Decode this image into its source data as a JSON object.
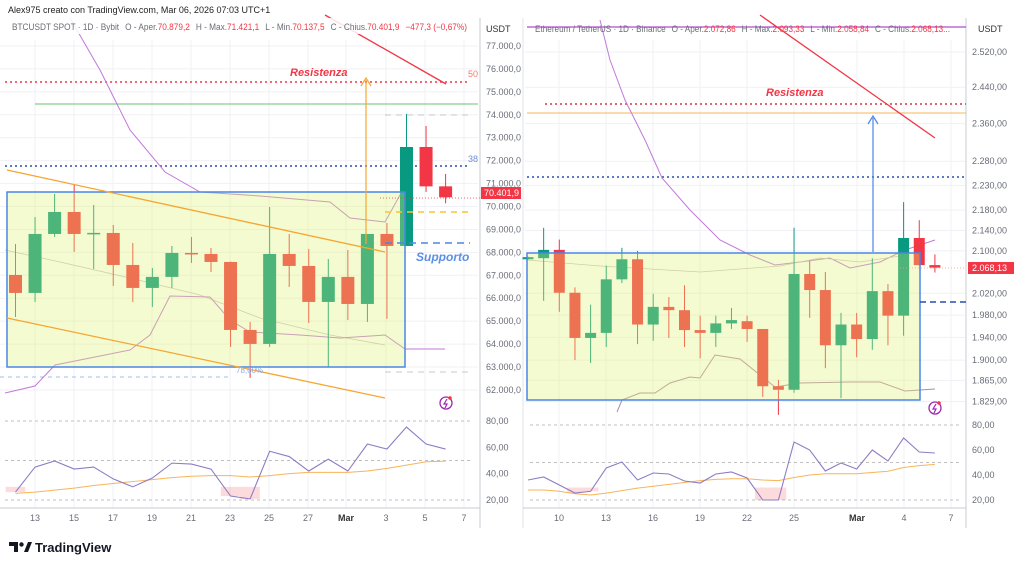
{
  "watermark": "Alex975 creato con TradingView.com, Mar 06, 2026 07:03 UTC+1",
  "brand": "TradingView",
  "colors": {
    "up": "#089981",
    "down": "#f23645",
    "rsi": "#8e7cc3",
    "rsi_ma": "#f7b45a",
    "box_fill": "#f3f9d2",
    "box_border": "#4a86e8"
  },
  "chart_data": [
    {
      "type": "candlestick",
      "symbol": "BTCUSDT SPOT",
      "header": {
        "symbol": "BTCUSDT SPOT · 1D · Bybit",
        "o_label": "O - Aper.",
        "o": "70.879,2",
        "h_label": "H - Max.",
        "h": "71.421,1",
        "l_label": "L - Min.",
        "l": "70.137,5",
        "c_label": "C - Chius.",
        "c": "70.401,9",
        "change": "−477,3 (−0,67%)"
      },
      "currency": "USDT",
      "last_price_label": "70.401,9",
      "ylim": [
        61500,
        77500
      ],
      "y_ticks": [
        "77.000,0",
        "76.000,0",
        "75.000,0",
        "74.000,0",
        "73.000,0",
        "72.000,0",
        "71.000,0",
        "70.000,0",
        "69.000,0",
        "68.000,0",
        "67.000,0",
        "66.000,0",
        "65.000,0",
        "64.000,0",
        "63.000,0",
        "62.000,0"
      ],
      "x_ticks": [
        "13",
        "15",
        "17",
        "19",
        "21",
        "23",
        "25",
        "27",
        "Mar",
        "3",
        "5",
        "7"
      ],
      "annotations": {
        "resistance": "Resistenza",
        "support": "Supporto",
        "fib_50": "50",
        "fib_38": "38",
        "fib_786": "78,60%"
      },
      "candles_columns": [
        "date",
        "open",
        "high",
        "low",
        "close"
      ],
      "candles": [
        [
          "Feb 12",
          67016,
          68367,
          65184,
          66231
        ],
        [
          "Feb 13",
          66231,
          69544,
          65838,
          68803
        ],
        [
          "Feb 14",
          68803,
          70547,
          68672,
          69762
        ],
        [
          "Feb 15",
          69762,
          70940,
          68018,
          68803
        ],
        [
          "Feb 16",
          68803,
          70067,
          67277,
          68850
        ],
        [
          "Feb 17",
          68847,
          69196,
          66536,
          67451
        ],
        [
          "Feb 18",
          67451,
          68410,
          65838,
          66449
        ],
        [
          "Feb 19",
          66449,
          67320,
          65620,
          66930
        ],
        [
          "Feb 20",
          66930,
          68280,
          66449,
          67975
        ],
        [
          "Feb 21",
          67975,
          68672,
          67540,
          67950
        ],
        [
          "Feb 22",
          67930,
          68192,
          67146,
          67582
        ],
        [
          "Feb 23",
          67582,
          67600,
          63876,
          64617
        ],
        [
          "Feb 24",
          64617,
          64966,
          62525,
          64007
        ],
        [
          "Feb 25",
          64007,
          69980,
          63876,
          67930
        ],
        [
          "Feb 26",
          67930,
          68803,
          66492,
          67408
        ],
        [
          "Feb 27",
          67408,
          68150,
          64922,
          65838
        ],
        [
          "Feb 28",
          65838,
          67712,
          63005,
          66930
        ],
        [
          "Mar 1",
          66930,
          68106,
          65053,
          65750
        ],
        [
          "Mar 2",
          65750,
          68803,
          64966,
          68803
        ],
        [
          "Mar 3",
          68803,
          69283,
          65100,
          68280
        ],
        [
          "Mar 4",
          68280,
          74035,
          68280,
          72596
        ],
        [
          "Mar 5",
          72596,
          73512,
          70635,
          70879
        ],
        [
          "Mar 6",
          70879.2,
          71421.1,
          70137.5,
          70401.9
        ]
      ],
      "rsi": {
        "y_ticks": [
          "80,00",
          "60,00",
          "40,00",
          "20,00"
        ],
        "ylim": [
          15,
          85
        ],
        "values": [
          26,
          45,
          49.6,
          43.5,
          45,
          36,
          30,
          36.7,
          48,
          47.3,
          43.5,
          23,
          20.8,
          57,
          53,
          42,
          51,
          42,
          62.5,
          58.7,
          75.4,
          62.5,
          58.7
        ],
        "ma": [
          25,
          26,
          27.5,
          29,
          31,
          32.5,
          34,
          35.5,
          37,
          38,
          38.5,
          38.5,
          37.5,
          38.5,
          40,
          41,
          41,
          41,
          42,
          44,
          46.5,
          49,
          49.5
        ]
      }
    },
    {
      "type": "candlestick",
      "symbol": "Ethereum / TetherUS",
      "header": {
        "symbol": "Ethereum / TetherUS · 1D · Binance",
        "o_label": "O - Aper.",
        "o": "2.072,86",
        "h_label": "H - Max.",
        "h": "2.093,33",
        "l_label": "L - Min.",
        "l": "2.058,84",
        "c_label": "C - Chius.",
        "c": "2.068,13..."
      },
      "currency": "USDT",
      "last_price_label": "2.068,13",
      "y_scale": "log",
      "ylim": [
        1800,
        2580
      ],
      "y_ticks": [
        "2.520,00",
        "2.440,00",
        "2.360,00",
        "2.280,00",
        "2.230,00",
        "2.180,00",
        "2.140,00",
        "2.100,00",
        "2.020,00",
        "1.980,00",
        "1.940,00",
        "1.900,00",
        "1.865,00",
        "1.829,00"
      ],
      "x_ticks": [
        "10",
        "13",
        "16",
        "19",
        "22",
        "25",
        "Mar",
        "4",
        "7"
      ],
      "annotations": {
        "resistance": "Resistenza"
      },
      "candles_columns": [
        "date",
        "open",
        "high",
        "low",
        "close"
      ],
      "candles": [
        [
          "Feb 8",
          2084,
          2089,
          2083,
          2088
        ],
        [
          "Feb 9",
          2086,
          2145,
          2006,
          2102
        ],
        [
          "Feb 10",
          2102,
          2122,
          1986,
          2021
        ],
        [
          "Feb 11",
          2021,
          2031,
          1900,
          1939
        ],
        [
          "Feb 12",
          1939,
          1999,
          1895,
          1948
        ],
        [
          "Feb 13",
          1948,
          2072,
          1923,
          2046
        ],
        [
          "Feb 14",
          2046,
          2106,
          2039,
          2084
        ],
        [
          "Feb 15",
          2084,
          2100,
          1928,
          1963
        ],
        [
          "Feb 16",
          1963,
          2019,
          1934,
          1995
        ],
        [
          "Feb 17",
          1995,
          2013,
          1939,
          1989
        ],
        [
          "Feb 18",
          1989,
          2035,
          1923,
          1953
        ],
        [
          "Feb 19",
          1953,
          1979,
          1903,
          1948
        ],
        [
          "Feb 20",
          1948,
          1979,
          1923,
          1965
        ],
        [
          "Feb 21",
          1965,
          1993,
          1955,
          1971
        ],
        [
          "Feb 22",
          1969,
          1979,
          1932,
          1955
        ],
        [
          "Feb 23",
          1955,
          1955,
          1837,
          1855
        ],
        [
          "Feb 24",
          1855,
          1866,
          1807,
          1849
        ],
        [
          "Feb 25",
          1849,
          2145,
          1844,
          2056
        ],
        [
          "Feb 26",
          2056,
          2081,
          1975,
          2026
        ],
        [
          "Feb 27",
          2026,
          2060,
          1886,
          1926
        ],
        [
          "Feb 28",
          1926,
          1984,
          1835,
          1963
        ],
        [
          "Mar 1",
          1963,
          1984,
          1905,
          1937
        ],
        [
          "Mar 2",
          1937,
          2086,
          1918,
          2024
        ],
        [
          "Mar 3",
          2024,
          2037,
          1926,
          1979
        ],
        [
          "Mar 4",
          1979,
          2196,
          1943,
          2125
        ],
        [
          "Mar 5",
          2125,
          2160,
          2072,
          2072.86
        ],
        [
          "Mar 6",
          2072.86,
          2093.33,
          2058.84,
          2068.13
        ]
      ],
      "rsi": {
        "y_ticks": [
          "80,00",
          "60,00",
          "40,00",
          "20,00"
        ],
        "ylim": [
          15,
          85
        ],
        "values": [
          36,
          38.4,
          32,
          25.6,
          27,
          45.6,
          50.4,
          36,
          41.6,
          40.8,
          35.2,
          33.6,
          40.8,
          42.4,
          37.6,
          20,
          20,
          66.4,
          60,
          43.2,
          49.6,
          44.8,
          60,
          51.2,
          69.6,
          58.4,
          57.6
        ],
        "ma": [
          28,
          28,
          27,
          25,
          24,
          25.5,
          27.5,
          29.5,
          31,
          32.5,
          34,
          35.5,
          36.5,
          37,
          37,
          36,
          35.5,
          38,
          40,
          41,
          41,
          41,
          42,
          43,
          46,
          47.5,
          48.5
        ]
      }
    }
  ]
}
